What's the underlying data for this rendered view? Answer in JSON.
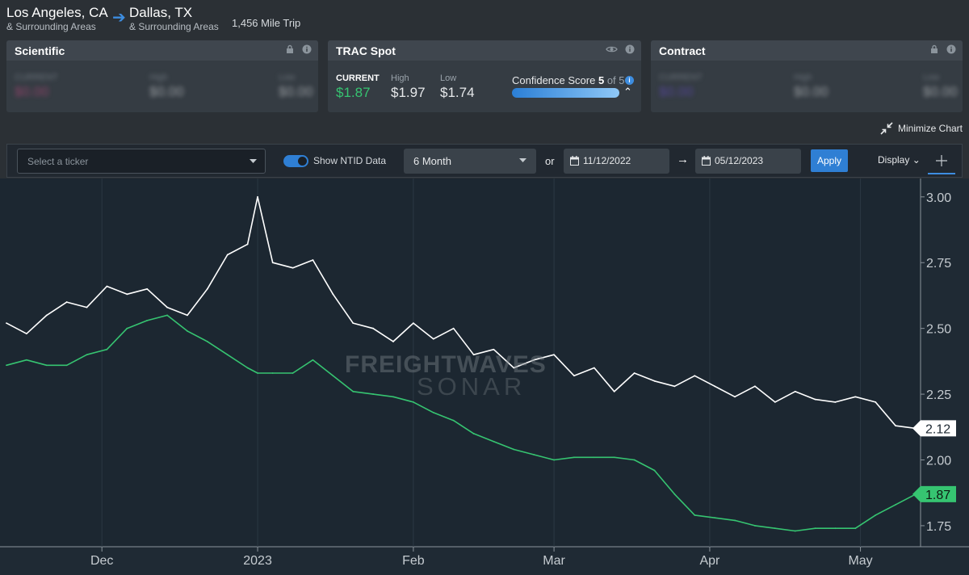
{
  "route": {
    "origin": "Los Angeles, CA",
    "origin_sub": "& Surrounding Areas",
    "dest": "Dallas, TX",
    "dest_sub": "& Surrounding Areas",
    "distance": "1,456 Mile Trip"
  },
  "cards": {
    "scientific": {
      "title": "Scientific",
      "current_label": "CURRENT",
      "current": "$0.00",
      "high_label": "High",
      "high": "$0.00",
      "low_label": "Low",
      "low": "$0.00"
    },
    "trac": {
      "title": "TRAC Spot",
      "current_label": "CURRENT",
      "current": "$1.87",
      "high_label": "High",
      "high": "$1.97",
      "low_label": "Low",
      "low": "$1.74",
      "confidence_label": "Confidence Score",
      "confidence_score": "5",
      "confidence_of": "of 5",
      "confidence_fraction": 1.0
    },
    "contract": {
      "title": "Contract",
      "current_label": "CURRENT",
      "current": "$0.00",
      "high_label": "High",
      "high": "$0.00",
      "low_label": "Low",
      "low": "$0.00"
    }
  },
  "minimize_label": "Minimize Chart",
  "toolbar": {
    "ticker_placeholder": "Select a ticker",
    "ntid_label": "Show NTID Data",
    "ntid_on": true,
    "period": "6 Month",
    "or_label": "or",
    "start_date": "11/12/2022",
    "end_date": "05/12/2023",
    "apply_label": "Apply",
    "display_label": "Display"
  },
  "watermark": {
    "line1": "FREIGHTWAVES",
    "line2": "SONAR"
  },
  "colors": {
    "accent": "#2f7fd4",
    "white_series": "#ffffff",
    "green_series": "#36c471",
    "bg": "#1c2731"
  },
  "chart_data": {
    "type": "line",
    "x_ticks": [
      "Dec",
      "2023",
      "Feb",
      "Mar",
      "Apr",
      "May"
    ],
    "y_ticks": [
      "3.00",
      "2.75",
      "2.50",
      "2.25",
      "2.00",
      "1.75"
    ],
    "ylim": [
      1.67,
      3.07
    ],
    "grid": "vertical",
    "series": [
      {
        "color": "#ffffff",
        "last_label": "2.12",
        "x": [
          "2022-11-12",
          "2022-11-16",
          "2022-11-20",
          "2022-11-24",
          "2022-11-28",
          "2022-12-02",
          "2022-12-06",
          "2022-12-10",
          "2022-12-14",
          "2022-12-18",
          "2022-12-22",
          "2022-12-26",
          "2022-12-30",
          "2023-01-01",
          "2023-01-04",
          "2023-01-08",
          "2023-01-12",
          "2023-01-16",
          "2023-01-20",
          "2023-01-24",
          "2023-01-28",
          "2023-02-01",
          "2023-02-05",
          "2023-02-09",
          "2023-02-13",
          "2023-02-17",
          "2023-02-21",
          "2023-02-25",
          "2023-03-01",
          "2023-03-05",
          "2023-03-09",
          "2023-03-13",
          "2023-03-17",
          "2023-03-21",
          "2023-03-25",
          "2023-03-29",
          "2023-04-02",
          "2023-04-06",
          "2023-04-10",
          "2023-04-14",
          "2023-04-18",
          "2023-04-22",
          "2023-04-26",
          "2023-04-30",
          "2023-05-04",
          "2023-05-08",
          "2023-05-12"
        ],
        "values": [
          2.52,
          2.48,
          2.55,
          2.6,
          2.58,
          2.66,
          2.63,
          2.65,
          2.58,
          2.55,
          2.65,
          2.78,
          2.82,
          3.0,
          2.75,
          2.73,
          2.76,
          2.63,
          2.52,
          2.5,
          2.45,
          2.52,
          2.46,
          2.5,
          2.4,
          2.42,
          2.35,
          2.38,
          2.4,
          2.32,
          2.35,
          2.26,
          2.33,
          2.3,
          2.28,
          2.32,
          2.28,
          2.24,
          2.28,
          2.22,
          2.26,
          2.23,
          2.22,
          2.24,
          2.22,
          2.13,
          2.12
        ]
      },
      {
        "color": "#36c471",
        "last_label": "1.87",
        "x": [
          "2022-11-12",
          "2022-11-16",
          "2022-11-20",
          "2022-11-24",
          "2022-11-28",
          "2022-12-02",
          "2022-12-06",
          "2022-12-10",
          "2022-12-14",
          "2022-12-18",
          "2022-12-22",
          "2022-12-26",
          "2022-12-30",
          "2023-01-01",
          "2023-01-04",
          "2023-01-08",
          "2023-01-12",
          "2023-01-16",
          "2023-01-20",
          "2023-01-24",
          "2023-01-28",
          "2023-02-01",
          "2023-02-05",
          "2023-02-09",
          "2023-02-13",
          "2023-02-17",
          "2023-02-21",
          "2023-02-25",
          "2023-03-01",
          "2023-03-05",
          "2023-03-09",
          "2023-03-13",
          "2023-03-17",
          "2023-03-21",
          "2023-03-25",
          "2023-03-29",
          "2023-04-02",
          "2023-04-06",
          "2023-04-10",
          "2023-04-14",
          "2023-04-18",
          "2023-04-22",
          "2023-04-26",
          "2023-04-30",
          "2023-05-04",
          "2023-05-08",
          "2023-05-12"
        ],
        "values": [
          2.36,
          2.38,
          2.36,
          2.36,
          2.4,
          2.42,
          2.5,
          2.53,
          2.55,
          2.49,
          2.45,
          2.4,
          2.35,
          2.33,
          2.33,
          2.33,
          2.38,
          2.32,
          2.26,
          2.25,
          2.24,
          2.22,
          2.18,
          2.15,
          2.1,
          2.07,
          2.04,
          2.02,
          2.0,
          2.01,
          2.01,
          2.01,
          2.0,
          1.96,
          1.87,
          1.79,
          1.78,
          1.77,
          1.75,
          1.74,
          1.73,
          1.74,
          1.74,
          1.74,
          1.79,
          1.83,
          1.87
        ]
      }
    ]
  }
}
